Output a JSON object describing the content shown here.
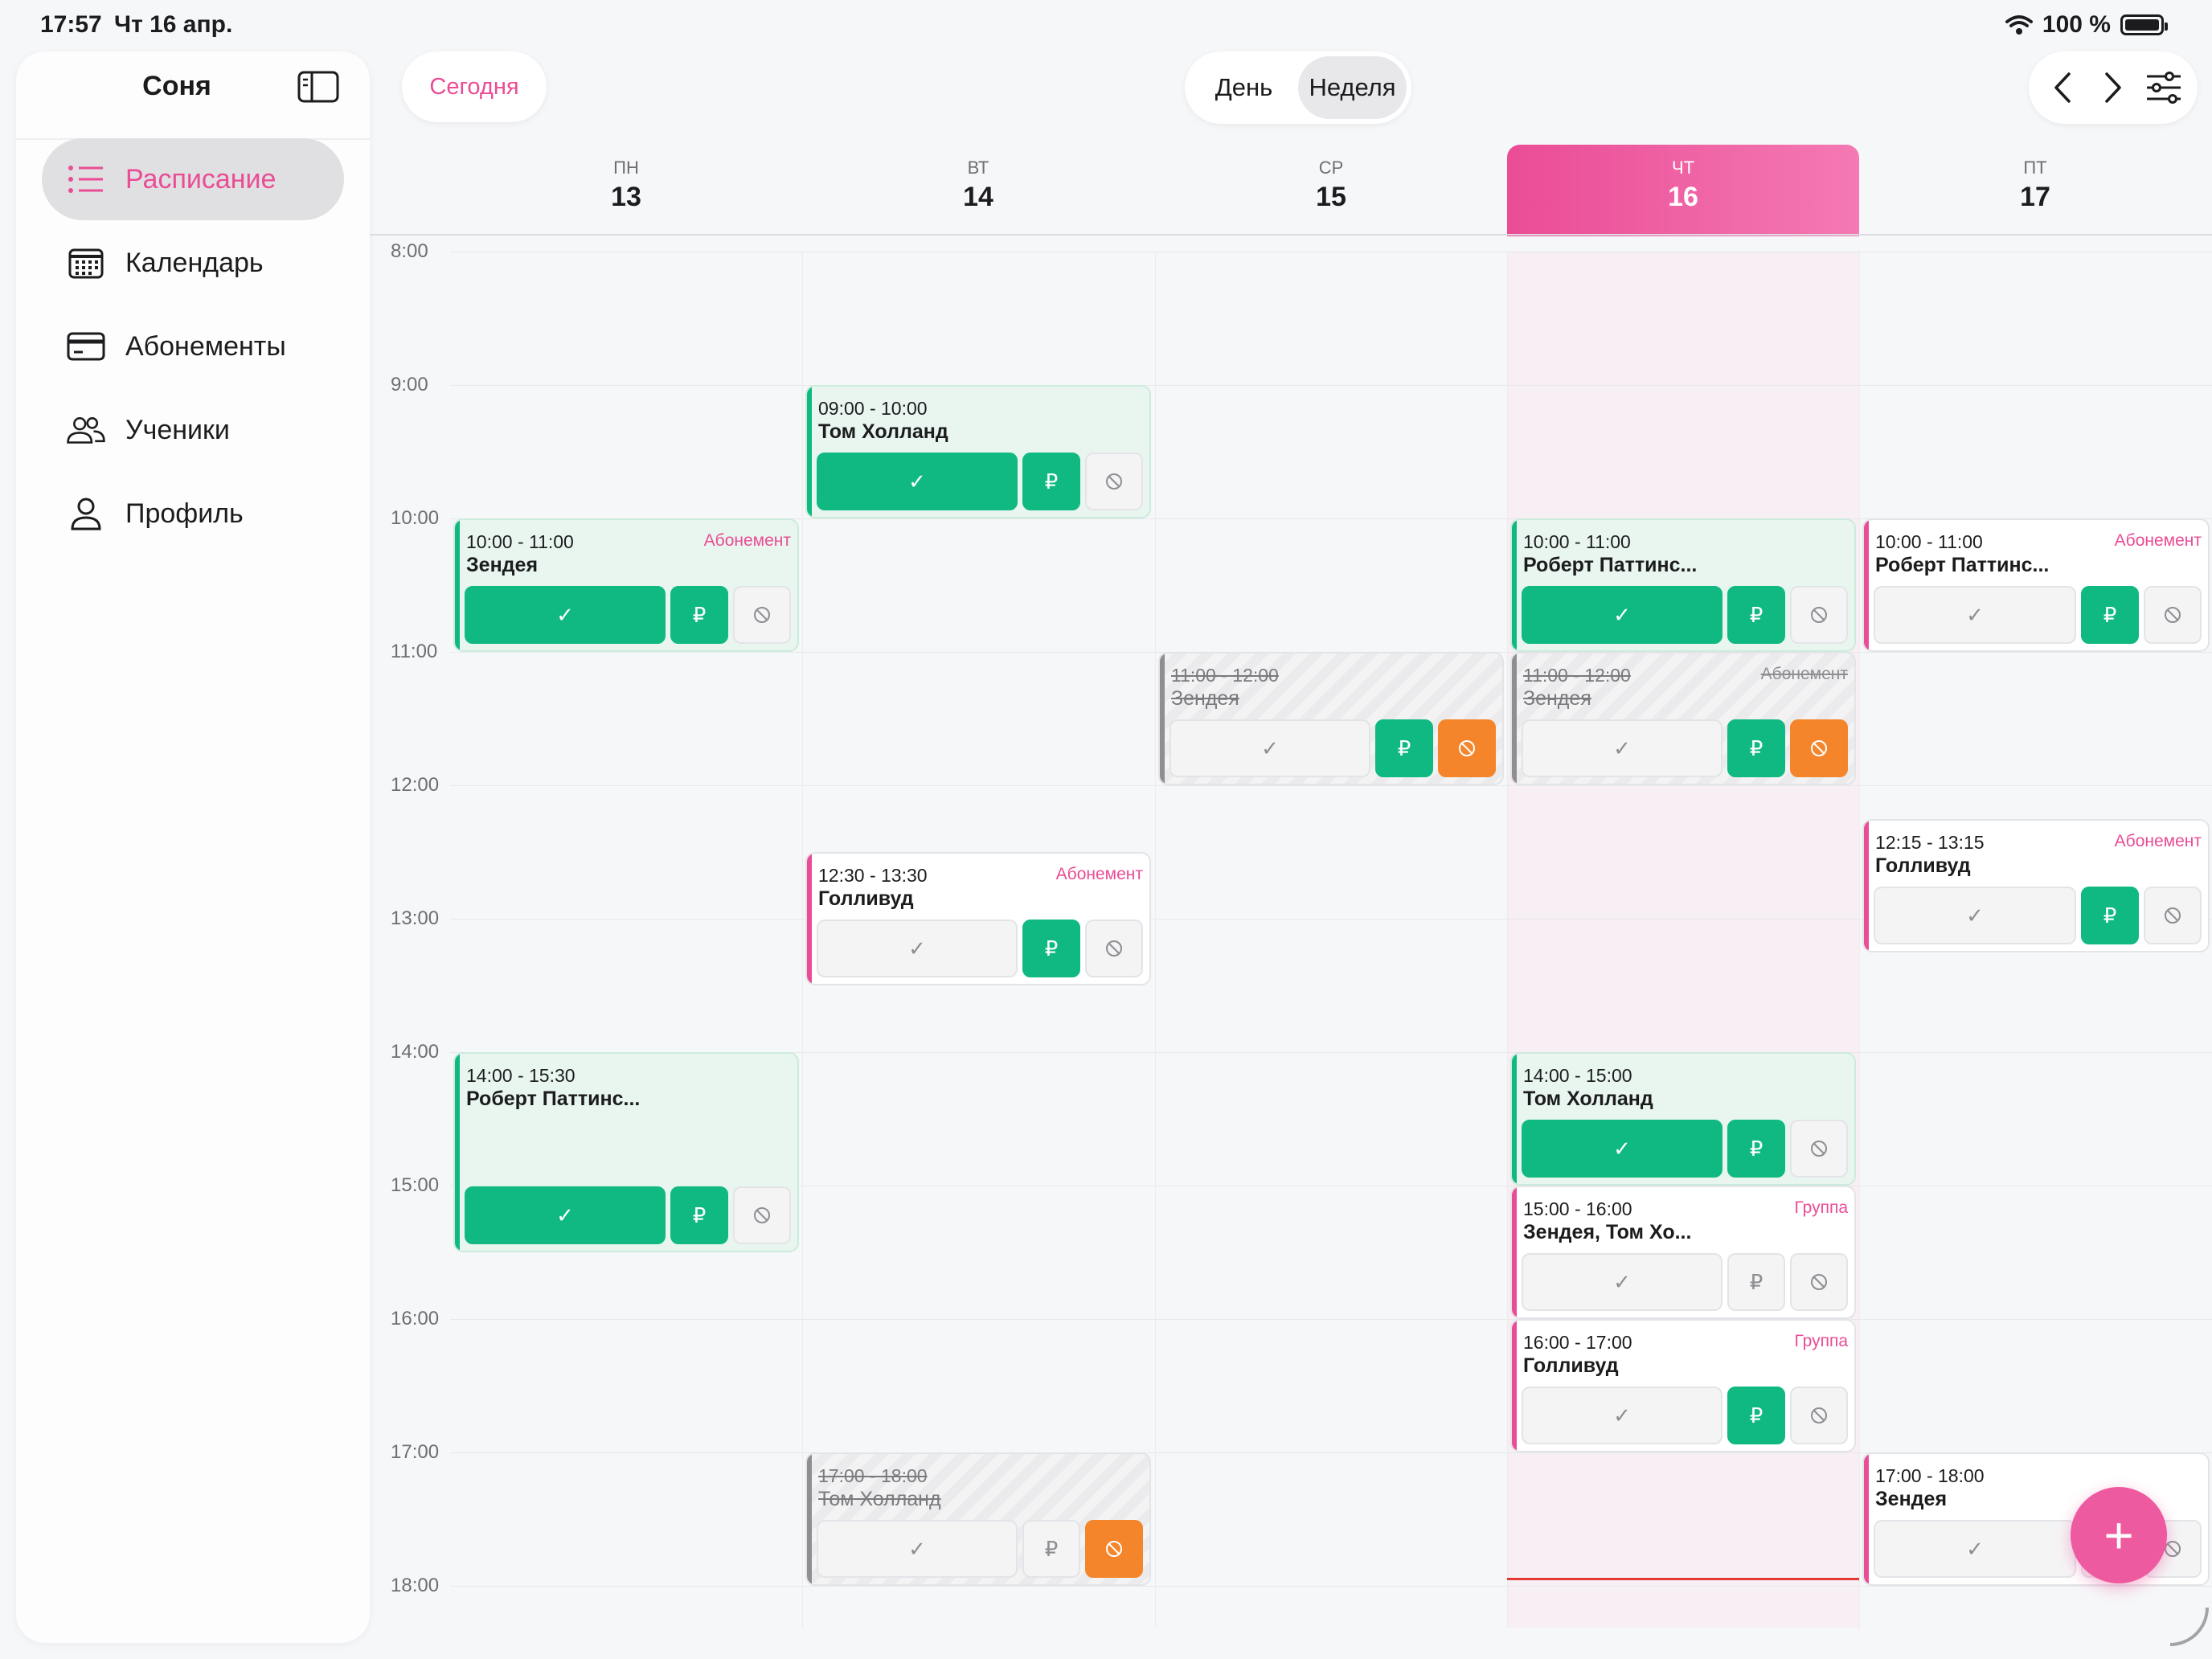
{
  "status": {
    "time": "17:57",
    "date": "Чт 16 апр.",
    "battery": "100 %"
  },
  "sidebar": {
    "user": "Соня",
    "items": [
      {
        "label": "Расписание",
        "icon": "list-icon",
        "active": true
      },
      {
        "label": "Календарь",
        "icon": "calendar-icon",
        "active": false
      },
      {
        "label": "Абонементы",
        "icon": "card-icon",
        "active": false
      },
      {
        "label": "Ученики",
        "icon": "users-icon",
        "active": false
      },
      {
        "label": "Профиль",
        "icon": "person-icon",
        "active": false
      }
    ]
  },
  "toolbar": {
    "today": "Сегодня",
    "view_day": "День",
    "view_week": "Неделя"
  },
  "days": [
    {
      "dow": "ПН",
      "num": "13"
    },
    {
      "dow": "ВТ",
      "num": "14"
    },
    {
      "dow": "СР",
      "num": "15"
    },
    {
      "dow": "ЧТ",
      "num": "16"
    },
    {
      "dow": "ПТ",
      "num": "17"
    }
  ],
  "hours": [
    "8:00",
    "9:00",
    "10:00",
    "11:00",
    "12:00",
    "13:00",
    "14:00",
    "15:00",
    "16:00",
    "17:00",
    "18:00"
  ],
  "events": {
    "mon1": {
      "time": "10:00 - 11:00",
      "name": "Зендея",
      "tag": "Абонемент"
    },
    "mon2": {
      "time": "14:00 - 15:30",
      "name": "Роберт Паттинс..."
    },
    "tue1": {
      "time": "09:00 - 10:00",
      "name": "Том Холланд"
    },
    "tue2": {
      "time": "12:30 - 13:30",
      "name": "Голливуд",
      "tag": "Абонемент"
    },
    "tue3": {
      "time": "17:00 - 18:00",
      "name": "Том Холланд"
    },
    "wed1": {
      "time": "11:00 - 12:00",
      "name": "Зендея"
    },
    "thu1": {
      "time": "10:00 - 11:00",
      "name": "Роберт Паттинс..."
    },
    "thu2": {
      "time": "11:00 - 12:00",
      "name": "Зендея",
      "tag": "Абонемент"
    },
    "thu3": {
      "time": "14:00 - 15:00",
      "name": "Том Холланд"
    },
    "thu4": {
      "time": "15:00 - 16:00",
      "name": "Зендея, Том Хо...",
      "tag": "Группа"
    },
    "thu5": {
      "time": "16:00 - 17:00",
      "name": "Голливуд",
      "tag": "Группа"
    },
    "fri1": {
      "time": "10:00 - 11:00",
      "name": "Роберт Паттинс...",
      "tag": "Абонемент"
    },
    "fri2": {
      "time": "12:15 - 13:15",
      "name": "Голливуд",
      "tag": "Абонемент"
    },
    "fri3": {
      "time": "17:00 - 18:00",
      "name": "Зендея"
    }
  },
  "symbols": {
    "check": "✓",
    "rub": "₽",
    "plus": "+"
  },
  "colors": {
    "accent": "#ea4c95",
    "success": "#10b981",
    "warning": "#f5852b",
    "now": "#e53935"
  }
}
